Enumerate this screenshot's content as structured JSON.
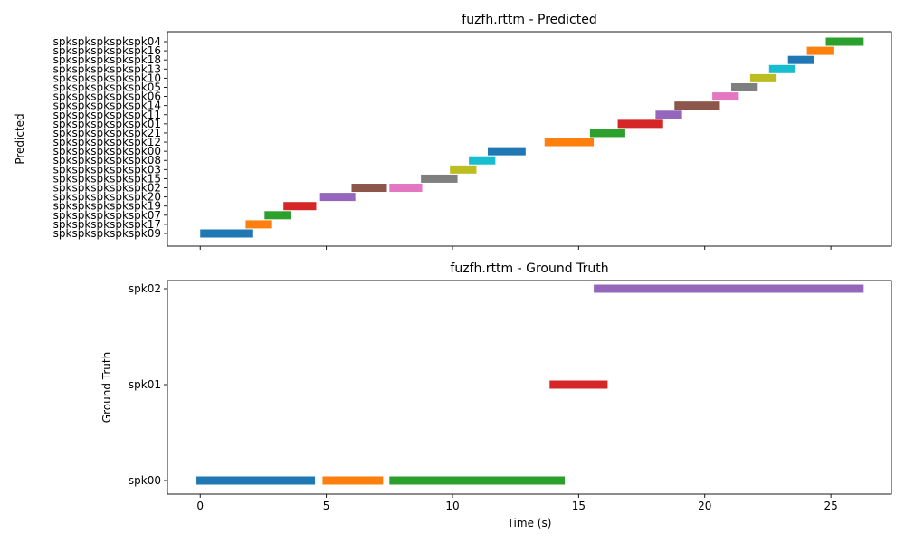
{
  "chart_data": [
    {
      "type": "gantt",
      "title": "fuzfh.rttm - Predicted",
      "ylabel": "Predicted",
      "xlabel": "",
      "xlim": [
        -1.3,
        27.4
      ],
      "xticks": [
        0,
        5,
        10,
        15,
        20,
        25
      ],
      "speakers": [
        "spkspkspkspkspk09",
        "spkspkspkspkspk17",
        "spkspkspkspkspk07",
        "spkspkspkspkspk19",
        "spkspkspkspkspk20",
        "spkspkspkspkspk02",
        "spkspkspkspkspk15",
        "spkspkspkspkspk03",
        "spkspkspkspkspk08",
        "spkspkspkspkspk00",
        "spkspkspkspkspk12",
        "spkspkspkspkspk21",
        "spkspkspkspkspk01",
        "spkspkspkspkspk11",
        "spkspkspkspkspk14",
        "spkspkspkspkspk06",
        "spkspkspkspkspk05",
        "spkspkspkspkspk10",
        "spkspkspkspkspk13",
        "spkspkspkspkspk18",
        "spkspkspkspkspk16",
        "spkspkspkspkspk04"
      ],
      "segments": [
        {
          "speaker": 0,
          "start": 0.0,
          "end": 2.1,
          "color": "#1f77b4"
        },
        {
          "speaker": 1,
          "start": 1.8,
          "end": 2.85,
          "color": "#ff7f0e"
        },
        {
          "speaker": 2,
          "start": 2.55,
          "end": 3.6,
          "color": "#2ca02c"
        },
        {
          "speaker": 3,
          "start": 3.3,
          "end": 4.6,
          "color": "#d62728"
        },
        {
          "speaker": 4,
          "start": 4.75,
          "end": 6.15,
          "color": "#9467bd"
        },
        {
          "speaker": 5,
          "start": 6.0,
          "end": 7.4,
          "color": "#8c564b"
        },
        {
          "speaker": 5,
          "start": 7.5,
          "end": 8.8,
          "color": "#e377c2"
        },
        {
          "speaker": 6,
          "start": 8.75,
          "end": 10.2,
          "color": "#7f7f7f"
        },
        {
          "speaker": 7,
          "start": 9.9,
          "end": 10.95,
          "color": "#bcbd22"
        },
        {
          "speaker": 8,
          "start": 10.65,
          "end": 11.7,
          "color": "#17becf"
        },
        {
          "speaker": 9,
          "start": 11.4,
          "end": 12.9,
          "color": "#1f77b4"
        },
        {
          "speaker": 10,
          "start": 13.65,
          "end": 15.6,
          "color": "#ff7f0e"
        },
        {
          "speaker": 11,
          "start": 15.45,
          "end": 16.85,
          "color": "#2ca02c"
        },
        {
          "speaker": 12,
          "start": 16.55,
          "end": 18.35,
          "color": "#d62728"
        },
        {
          "speaker": 13,
          "start": 18.05,
          "end": 19.1,
          "color": "#9467bd"
        },
        {
          "speaker": 14,
          "start": 18.8,
          "end": 20.6,
          "color": "#8c564b"
        },
        {
          "speaker": 15,
          "start": 20.3,
          "end": 21.35,
          "color": "#e377c2"
        },
        {
          "speaker": 16,
          "start": 21.05,
          "end": 22.1,
          "color": "#7f7f7f"
        },
        {
          "speaker": 17,
          "start": 21.8,
          "end": 22.85,
          "color": "#bcbd22"
        },
        {
          "speaker": 18,
          "start": 22.55,
          "end": 23.6,
          "color": "#17becf"
        },
        {
          "speaker": 19,
          "start": 23.3,
          "end": 24.35,
          "color": "#1f77b4"
        },
        {
          "speaker": 20,
          "start": 24.05,
          "end": 25.1,
          "color": "#ff7f0e"
        },
        {
          "speaker": 21,
          "start": 24.8,
          "end": 26.3,
          "color": "#2ca02c"
        }
      ]
    },
    {
      "type": "gantt",
      "title": "fuzfh.rttm - Ground Truth",
      "ylabel": "Ground Truth",
      "xlabel": "Time (s)",
      "xlim": [
        -1.3,
        27.4
      ],
      "xticks": [
        0,
        5,
        10,
        15,
        20,
        25
      ],
      "speakers": [
        "spk00",
        "spk01",
        "spk02"
      ],
      "segments": [
        {
          "speaker": 0,
          "start": -0.15,
          "end": 4.55,
          "color": "#1f77b4"
        },
        {
          "speaker": 0,
          "start": 4.85,
          "end": 7.25,
          "color": "#ff7f0e"
        },
        {
          "speaker": 0,
          "start": 7.5,
          "end": 14.45,
          "color": "#2ca02c"
        },
        {
          "speaker": 1,
          "start": 13.85,
          "end": 16.15,
          "color": "#d62728"
        },
        {
          "speaker": 2,
          "start": 15.6,
          "end": 26.3,
          "color": "#9467bd"
        }
      ]
    }
  ]
}
